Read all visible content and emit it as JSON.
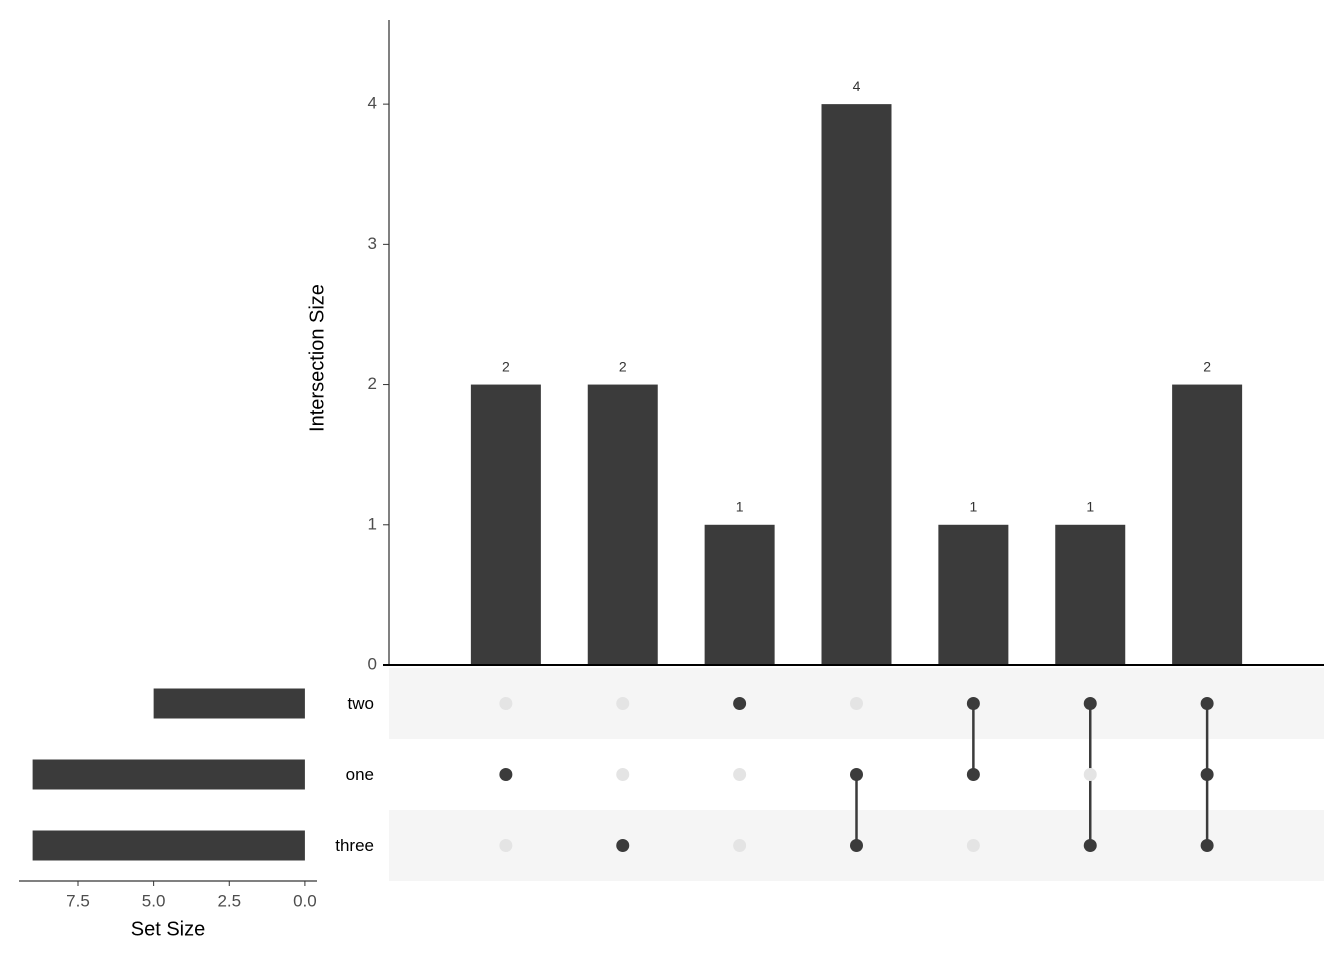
{
  "chart_data": {
    "type": "upset",
    "y_label": "Intersection Size",
    "x_label": "Set Size",
    "sets": [
      "two",
      "one",
      "three"
    ],
    "set_sizes": [
      5,
      9,
      9
    ],
    "set_xlim": [
      9.45,
      -0.4
    ],
    "set_xticks": [
      {
        "value": 7.5,
        "label": "7.5"
      },
      {
        "value": 5,
        "label": "5.0"
      },
      {
        "value": 2.5,
        "label": "2.5"
      },
      {
        "value": 0,
        "label": "0.0"
      }
    ],
    "values": [
      2,
      2,
      1,
      4,
      1,
      1,
      2
    ],
    "matrix": [
      [
        0,
        0,
        1,
        0,
        1,
        1,
        1
      ],
      [
        1,
        0,
        0,
        1,
        1,
        0,
        1
      ],
      [
        0,
        1,
        0,
        1,
        0,
        1,
        1
      ]
    ],
    "ylim": [
      0,
      4.6
    ],
    "yticks": [
      0,
      1,
      2,
      3,
      4
    ],
    "color": "#3b3b3b",
    "inactive_color": "#e4e4e4",
    "stripe_color": "#f5f5f5"
  }
}
